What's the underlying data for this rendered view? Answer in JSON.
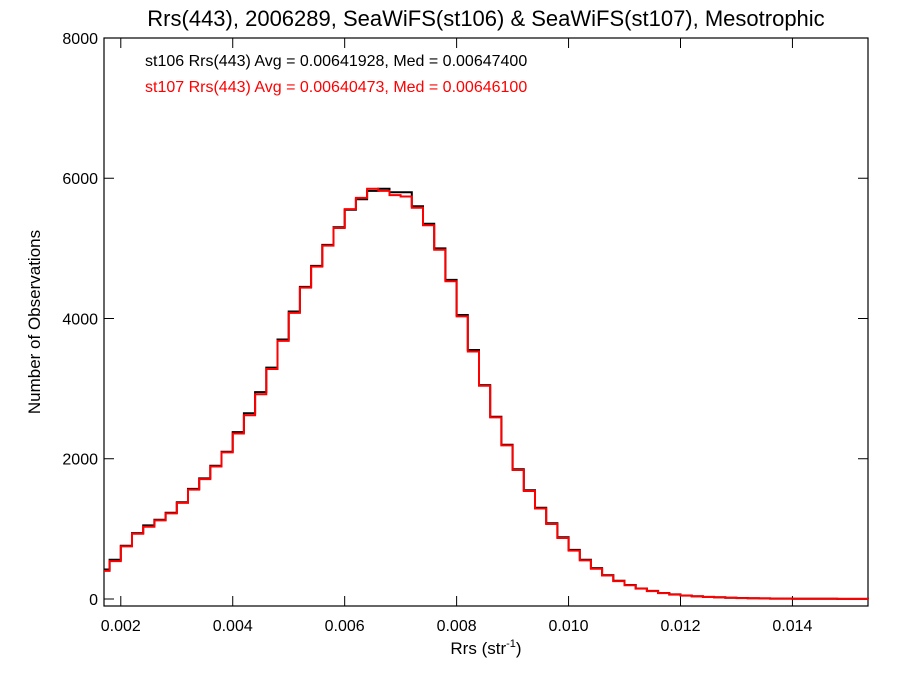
{
  "chart_data": {
    "type": "line",
    "title": "Rrs(443), 2006289, SeaWiFS(st106) & SeaWiFS(st107), Mesotrophic",
    "xlabel": "Rrs (str",
    "xlabel_sup": "-1",
    "xlabel_end": ")",
    "ylabel": "Number of Observations",
    "xlim": [
      0.0017,
      0.01535
    ],
    "ylim": [
      -100,
      8000
    ],
    "x_ticks": [
      0.002,
      0.004,
      0.006,
      0.008,
      0.01,
      0.012,
      0.014
    ],
    "x_tick_labels": [
      "0.002",
      "0.004",
      "0.006",
      "0.008",
      "0.010",
      "0.012",
      "0.014"
    ],
    "y_ticks": [
      0,
      2000,
      4000,
      6000,
      8000
    ],
    "y_tick_labels": [
      "0",
      "2000",
      "4000",
      "6000",
      "8000"
    ],
    "grid": false,
    "legend": [
      {
        "text": "st106 Rrs(443) Avg = 0.00641928, Med = 0.00647400",
        "color": "#000000"
      },
      {
        "text": "st107 Rrs(443) Avg = 0.00640473, Med = 0.00646100",
        "color": "#ff0000"
      }
    ],
    "series": [
      {
        "name": "st106",
        "color": "#000000",
        "x": [
          0.0017,
          0.0018,
          0.002,
          0.0022,
          0.0024,
          0.0026,
          0.0028,
          0.003,
          0.0032,
          0.0034,
          0.0036,
          0.0038,
          0.004,
          0.0042,
          0.0044,
          0.0046,
          0.0048,
          0.005,
          0.0052,
          0.0054,
          0.0056,
          0.0058,
          0.006,
          0.0062,
          0.0064,
          0.0066,
          0.0068,
          0.007,
          0.0072,
          0.0074,
          0.0076,
          0.0078,
          0.008,
          0.0082,
          0.0084,
          0.0086,
          0.0088,
          0.009,
          0.0092,
          0.0094,
          0.0096,
          0.0098,
          0.01,
          0.0102,
          0.0104,
          0.0106,
          0.0108,
          0.011,
          0.0112,
          0.0114,
          0.0116,
          0.0118,
          0.012,
          0.0122,
          0.0124,
          0.0126,
          0.0128,
          0.013,
          0.0132,
          0.0134,
          0.0136,
          0.0138,
          0.014,
          0.0142,
          0.0144,
          0.0146,
          0.0148,
          0.015,
          0.0152,
          0.01535
        ],
        "y": [
          420,
          560,
          760,
          940,
          1050,
          1130,
          1230,
          1380,
          1570,
          1720,
          1900,
          2100,
          2380,
          2650,
          2950,
          3300,
          3700,
          4100,
          4450,
          4750,
          5050,
          5300,
          5550,
          5700,
          5820,
          5850,
          5800,
          5800,
          5600,
          5350,
          5000,
          4550,
          4050,
          3550,
          3050,
          2600,
          2200,
          1850,
          1550,
          1300,
          1080,
          880,
          700,
          560,
          440,
          340,
          260,
          200,
          150,
          115,
          85,
          65,
          50,
          38,
          30,
          24,
          18,
          14,
          10,
          8,
          6,
          5,
          4,
          3,
          2,
          2,
          1,
          1,
          1,
          0
        ]
      },
      {
        "name": "st107",
        "color": "#ff0000",
        "x": [
          0.0017,
          0.0018,
          0.002,
          0.0022,
          0.0024,
          0.0026,
          0.0028,
          0.003,
          0.0032,
          0.0034,
          0.0036,
          0.0038,
          0.004,
          0.0042,
          0.0044,
          0.0046,
          0.0048,
          0.005,
          0.0052,
          0.0054,
          0.0056,
          0.0058,
          0.006,
          0.0062,
          0.0064,
          0.0066,
          0.0068,
          0.007,
          0.0072,
          0.0074,
          0.0076,
          0.0078,
          0.008,
          0.0082,
          0.0084,
          0.0086,
          0.0088,
          0.009,
          0.0092,
          0.0094,
          0.0096,
          0.0098,
          0.01,
          0.0102,
          0.0104,
          0.0106,
          0.0108,
          0.011,
          0.0112,
          0.0114,
          0.0116,
          0.0118,
          0.012,
          0.0122,
          0.0124,
          0.0126,
          0.0128,
          0.013,
          0.0132,
          0.0134,
          0.0136,
          0.0138,
          0.014,
          0.0142,
          0.0144,
          0.0146,
          0.0148,
          0.015,
          0.0152,
          0.01535
        ],
        "y": [
          400,
          540,
          750,
          930,
          1030,
          1120,
          1220,
          1370,
          1560,
          1710,
          1890,
          2090,
          2360,
          2620,
          2920,
          3280,
          3680,
          4080,
          4440,
          4740,
          5040,
          5290,
          5560,
          5720,
          5850,
          5820,
          5760,
          5740,
          5580,
          5330,
          4980,
          4530,
          4030,
          3530,
          3040,
          2590,
          2190,
          1840,
          1540,
          1290,
          1070,
          870,
          690,
          550,
          430,
          335,
          255,
          195,
          148,
          112,
          84,
          63,
          49,
          37,
          29,
          23,
          17,
          13,
          10,
          8,
          6,
          5,
          4,
          3,
          2,
          2,
          1,
          1,
          1,
          0
        ]
      }
    ]
  }
}
